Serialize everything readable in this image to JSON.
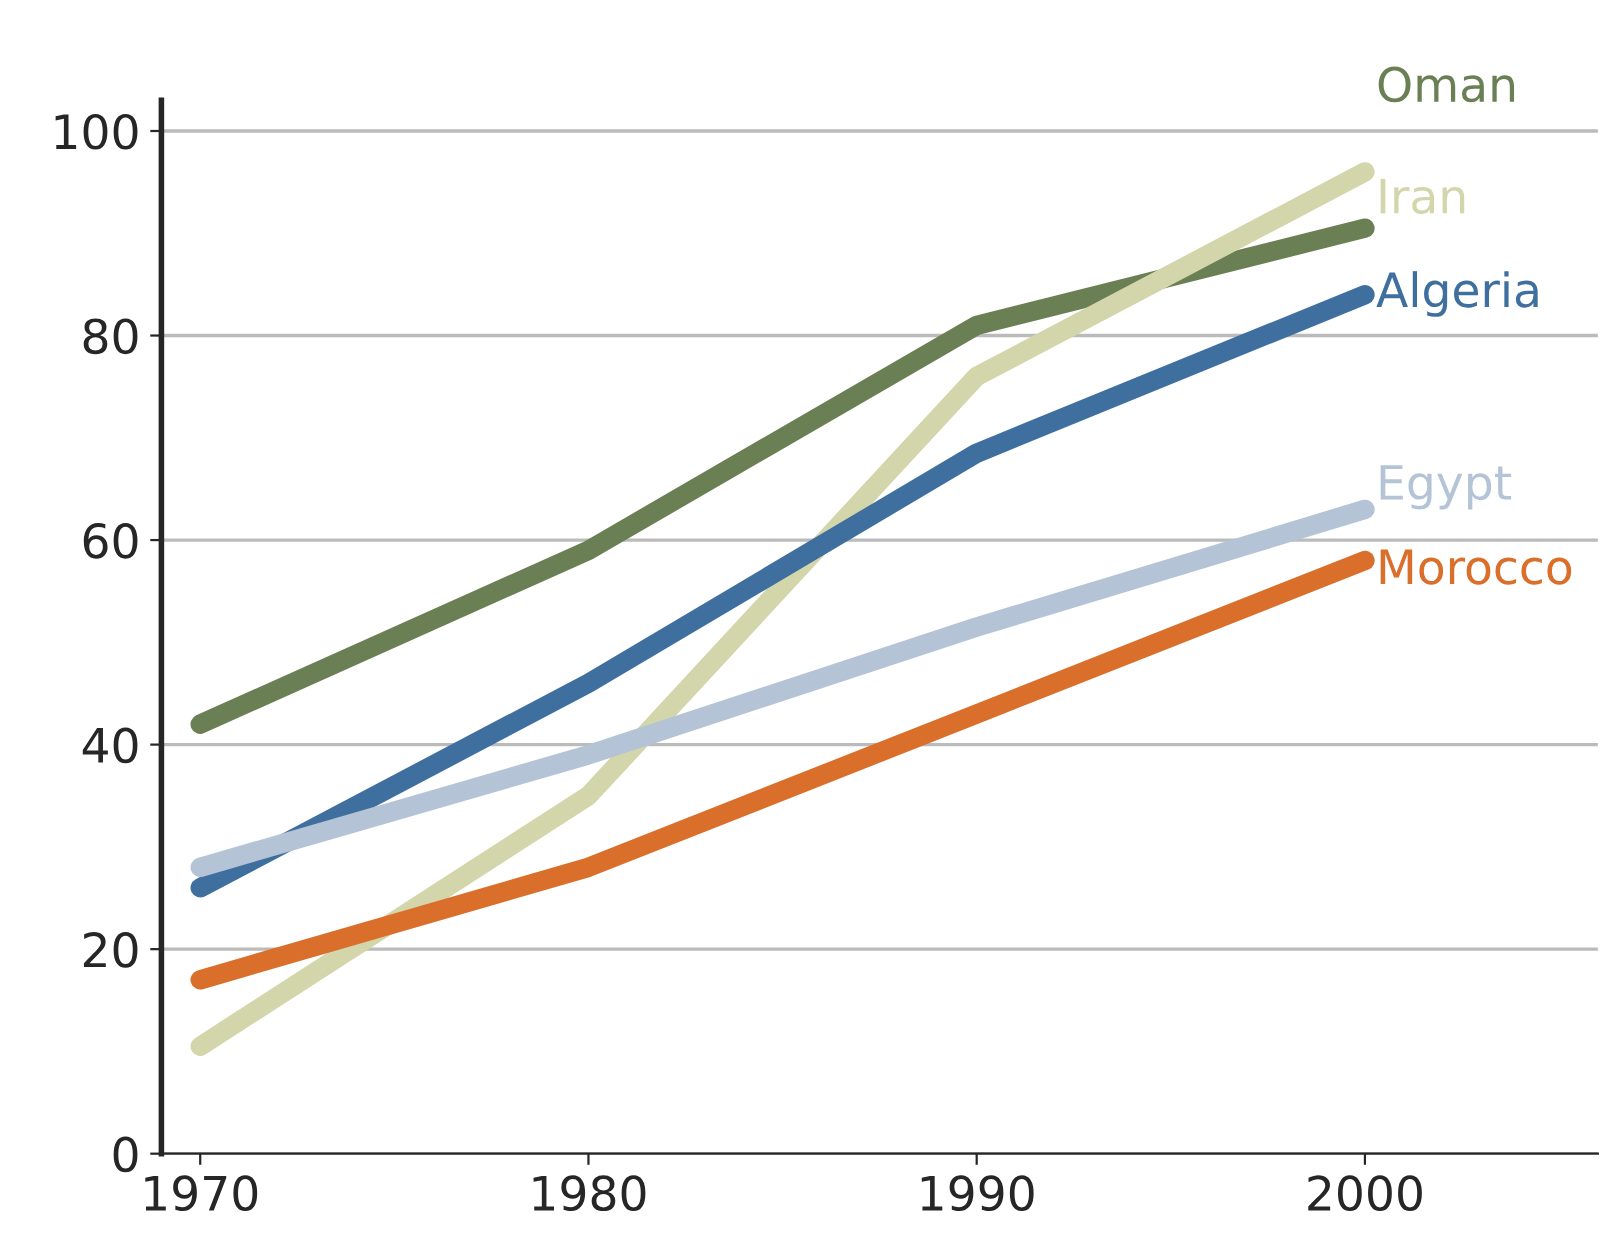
{
  "chart_data": {
    "type": "line",
    "x": [
      1970,
      1980,
      1990,
      2000
    ],
    "xlim": [
      1969,
      2006
    ],
    "xticks": [
      1970,
      1980,
      1990,
      2000
    ],
    "ylim": [
      0,
      103
    ],
    "yticks": [
      0,
      20,
      40,
      60,
      80,
      100
    ],
    "grid": "y",
    "legend": false,
    "marker": "none",
    "line_style": "solid",
    "series": [
      {
        "name": "Oman",
        "color": "#6b7f55",
        "values": [
          42,
          59,
          81,
          90.5
        ]
      },
      {
        "name": "Iran",
        "color": "#d3d6ab",
        "values": [
          10.5,
          35,
          76,
          96
        ]
      },
      {
        "name": "Algeria",
        "color": "#3f6f9f",
        "values": [
          26,
          46,
          68.5,
          84
        ]
      },
      {
        "name": "Egypt",
        "color": "#b4c4d6",
        "values": [
          28,
          39,
          51.5,
          63
        ]
      },
      {
        "name": "Morocco",
        "color": "#d96f2a",
        "values": [
          17,
          28,
          43,
          58
        ]
      }
    ]
  }
}
